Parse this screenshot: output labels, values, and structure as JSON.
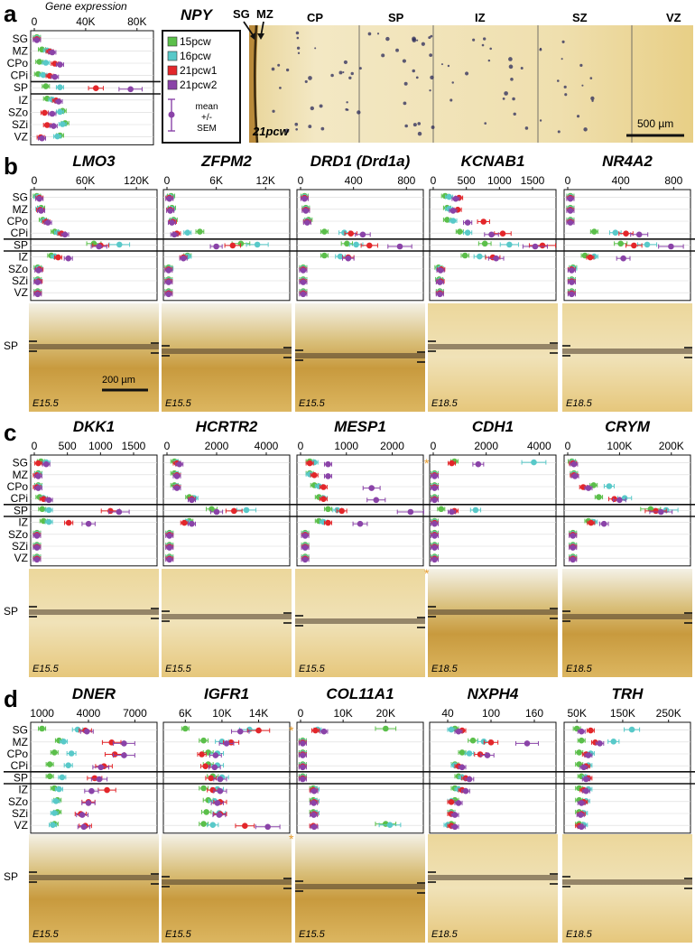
{
  "colors": {
    "s15": "#5bbf4a",
    "s16": "#58c9c9",
    "s21a": "#e3262a",
    "s21b": "#8a43a8",
    "tissue_light": "#f0e0a8",
    "tissue_dark": "#c99d45",
    "frame": "#111111"
  },
  "layers": [
    "SG",
    "MZ",
    "CPo",
    "CPi",
    "SP",
    "IZ",
    "SZo",
    "SZi",
    "VZ"
  ],
  "panel_a": {
    "letter": "a",
    "gene": "NPY",
    "axis_title": "Gene expression",
    "ticks": [
      "0",
      "40K",
      "80K"
    ],
    "tick_values": [
      0,
      40000,
      80000
    ],
    "x_max": 90000,
    "legend": {
      "items": [
        "15pcw",
        "16pcw",
        "21pcw1",
        "21pcw2"
      ],
      "sem_label": [
        "mean",
        "+/-",
        "SEM"
      ]
    },
    "zone_labels": [
      "SG",
      "MZ",
      "CP",
      "SP",
      "IZ",
      "SZ",
      "VZ"
    ],
    "age": "21pcw",
    "scale_bar": "500 µm"
  },
  "chart_data": {
    "type": "scatter",
    "series_names": [
      "15pcw",
      "16pcw",
      "21pcw1",
      "21pcw2"
    ],
    "panels": [
      {
        "id": "a",
        "gene": "NPY",
        "ticks": [
          "0",
          "40K",
          "80K"
        ],
        "tick_values": [
          0,
          40000,
          80000
        ],
        "x_max": 90000,
        "data": [
          [
            2000,
            2000,
            2000,
            2000
          ],
          [
            6000,
            10000,
            12000,
            14000
          ],
          [
            4000,
            9000,
            16000,
            20000
          ],
          [
            3000,
            7000,
            12000,
            16000
          ],
          [
            9000,
            20000,
            48000,
            75000
          ],
          [
            10000,
            14000,
            17000,
            19000
          ],
          [
            22000,
            20000,
            8000,
            14000
          ],
          [
            24000,
            22000,
            10000,
            15000
          ],
          [
            20000,
            18000,
            5000,
            6000
          ]
        ]
      },
      {
        "id": "b",
        "gene": "LMO3",
        "ticks": [
          "0",
          "60K",
          "120K"
        ],
        "tick_values": [
          0,
          60000,
          120000
        ],
        "x_max": 140000,
        "data": [
          [
            3000,
            4000,
            6000,
            6000
          ],
          [
            8000,
            6000,
            7000,
            8000
          ],
          [
            10000,
            12000,
            14000,
            16000
          ],
          [
            24000,
            28000,
            32000,
            36000
          ],
          [
            70000,
            100000,
            78000,
            76000
          ],
          [
            20000,
            24000,
            28000,
            40000
          ],
          [
            4000,
            5000,
            6000,
            5000
          ],
          [
            4000,
            4000,
            5000,
            4000
          ],
          [
            4000,
            4000,
            4000,
            4000
          ]
        ]
      },
      {
        "id": "b",
        "gene": "ZFPM2",
        "ticks": [
          "0",
          "6K",
          "12K"
        ],
        "tick_values": [
          0,
          6000,
          12000
        ],
        "x_max": 14500,
        "data": [
          [
            500,
            400,
            300,
            300
          ],
          [
            600,
            500,
            400,
            400
          ],
          [
            800,
            700,
            700,
            600
          ],
          [
            4000,
            2500,
            1200,
            900
          ],
          [
            9000,
            11000,
            8000,
            6000
          ],
          [
            2500,
            2500,
            2000,
            2000
          ],
          [
            200,
            300,
            200,
            200
          ],
          [
            200,
            200,
            200,
            200
          ],
          [
            200,
            200,
            200,
            200
          ]
        ]
      },
      {
        "id": "b",
        "gene": "DRD1 (Drd1a)",
        "ticks": [
          "0",
          "400",
          "800"
        ],
        "tick_values": [
          0,
          400,
          800
        ],
        "x_max": 900,
        "data": [
          [
            30,
            30,
            30,
            30
          ],
          [
            40,
            40,
            40,
            40
          ],
          [
            60,
            50,
            50,
            50
          ],
          [
            180,
            330,
            380,
            470
          ],
          [
            350,
            420,
            520,
            750
          ],
          [
            180,
            300,
            360,
            360
          ],
          [
            20,
            20,
            20,
            20
          ],
          [
            20,
            20,
            20,
            20
          ],
          [
            20,
            20,
            20,
            20
          ]
        ]
      },
      {
        "id": "b",
        "gene": "KCNAB1",
        "ticks": [
          "0",
          "500",
          "1000",
          "1500"
        ],
        "tick_values": [
          0,
          500,
          1000,
          1500
        ],
        "x_max": 1800,
        "data": [
          [
            180,
            240,
            390,
            340
          ],
          [
            210,
            240,
            370,
            300
          ],
          [
            210,
            300,
            760,
            520
          ],
          [
            400,
            520,
            1050,
            880
          ],
          [
            780,
            1150,
            1650,
            1540
          ],
          [
            480,
            700,
            900,
            950
          ],
          [
            80,
            100,
            120,
            110
          ],
          [
            90,
            100,
            110,
            100
          ],
          [
            100,
            100,
            100,
            100
          ]
        ]
      },
      {
        "id": "b",
        "gene": "NR4A2",
        "ticks": [
          "0",
          "400",
          "800"
        ],
        "tick_values": [
          0,
          400,
          800
        ],
        "x_max": 900,
        "data": [
          [
            20,
            20,
            20,
            20
          ],
          [
            20,
            20,
            20,
            20
          ],
          [
            20,
            20,
            20,
            20
          ],
          [
            200,
            360,
            440,
            540
          ],
          [
            400,
            600,
            500,
            780
          ],
          [
            130,
            200,
            170,
            420
          ],
          [
            40,
            40,
            30,
            30
          ],
          [
            30,
            30,
            30,
            30
          ],
          [
            30,
            30,
            30,
            30
          ]
        ]
      },
      {
        "id": "c",
        "gene": "DKK1",
        "ticks": [
          "0",
          "500",
          "1000",
          "1500"
        ],
        "tick_values": [
          0,
          500,
          1000,
          1500
        ],
        "x_max": 1800,
        "data": [
          [
            100,
            180,
            60,
            180
          ],
          [
            60,
            60,
            40,
            60
          ],
          [
            60,
            60,
            40,
            60
          ],
          [
            80,
            140,
            140,
            220
          ],
          [
            120,
            220,
            1150,
            1280
          ],
          [
            140,
            220,
            520,
            820
          ],
          [
            40,
            40,
            40,
            40
          ],
          [
            40,
            40,
            40,
            40
          ],
          [
            40,
            40,
            40,
            40
          ]
        ]
      },
      {
        "id": "c",
        "gene": "HCRTR2",
        "ticks": [
          "0",
          "2000",
          "4000"
        ],
        "tick_values": [
          0,
          2000,
          4000
        ],
        "x_max": 4800,
        "data": [
          [
            300,
            400,
            400,
            500
          ],
          [
            300,
            400,
            400,
            400
          ],
          [
            300,
            400,
            400,
            400
          ],
          [
            900,
            1100,
            1000,
            1000
          ],
          [
            1800,
            3200,
            2700,
            2000
          ],
          [
            900,
            800,
            700,
            1000
          ],
          [
            100,
            100,
            100,
            100
          ],
          [
            100,
            100,
            100,
            100
          ],
          [
            100,
            100,
            100,
            100
          ]
        ]
      },
      {
        "id": "c",
        "gene": "MESP1",
        "ticks": [
          "0",
          "1000",
          "2000"
        ],
        "tick_values": [
          0,
          1000,
          2000
        ],
        "x_max": 2600,
        "data": [
          [
            200,
            300,
            200,
            600
          ],
          [
            200,
            200,
            300,
            600
          ],
          [
            300,
            400,
            500,
            1550
          ],
          [
            400,
            500,
            500,
            1650
          ],
          [
            600,
            800,
            900,
            2400
          ],
          [
            400,
            500,
            600,
            1300
          ],
          [
            100,
            100,
            100,
            100
          ],
          [
            100,
            100,
            100,
            100
          ],
          [
            100,
            100,
            100,
            100
          ]
        ]
      },
      {
        "id": "c",
        "gene": "CDH1",
        "ticks": [
          "0",
          "2000",
          "4000"
        ],
        "tick_values": [
          0,
          2000,
          4000
        ],
        "x_max": 4500,
        "data": [
          [
            800,
            3800,
            700,
            1700
          ],
          [
            50,
            50,
            50,
            50
          ],
          [
            50,
            50,
            50,
            50
          ],
          [
            50,
            50,
            50,
            50
          ],
          [
            300,
            1600,
            800,
            700
          ],
          [
            50,
            50,
            50,
            50
          ],
          [
            50,
            50,
            50,
            50
          ],
          [
            50,
            50,
            50,
            50
          ],
          [
            50,
            50,
            50,
            50
          ]
        ]
      },
      {
        "id": "c",
        "gene": "CRYM",
        "ticks": [
          "0",
          "100K",
          "200K"
        ],
        "tick_values": [
          0,
          100000,
          200000
        ],
        "x_max": 230000,
        "data": [
          [
            8000,
            10000,
            10000,
            12000
          ],
          [
            12000,
            12000,
            12000,
            14000
          ],
          [
            50000,
            80000,
            30000,
            40000
          ],
          [
            60000,
            110000,
            90000,
            100000
          ],
          [
            160000,
            190000,
            170000,
            180000
          ],
          [
            40000,
            50000,
            45000,
            70000
          ],
          [
            10000,
            10000,
            10000,
            10000
          ],
          [
            10000,
            10000,
            10000,
            10000
          ],
          [
            10000,
            10000,
            10000,
            10000
          ]
        ]
      },
      {
        "id": "d",
        "gene": "DNER",
        "ticks": [
          "1000",
          "4000",
          "7000"
        ],
        "tick_values": [
          1000,
          4000,
          7000
        ],
        "x_min": 500,
        "x_max": 8200,
        "data": [
          [
            1000,
            3300,
            3800,
            3900
          ],
          [
            2100,
            2400,
            5500,
            6300
          ],
          [
            1800,
            2900,
            5700,
            6300
          ],
          [
            1500,
            2700,
            5000,
            4800
          ],
          [
            1500,
            2300,
            4400,
            4700
          ],
          [
            1800,
            2100,
            5200,
            4200
          ],
          [
            2000,
            1900,
            4000,
            4000
          ],
          [
            2000,
            1800,
            3500,
            3600
          ],
          [
            1800,
            1700,
            3800,
            3700
          ]
        ]
      },
      {
        "id": "d",
        "gene": "IGFR1",
        "ticks": [
          "6K",
          "10K",
          "14K"
        ],
        "tick_values": [
          6000,
          10000,
          14000
        ],
        "x_min": 4000,
        "x_max": 17000,
        "data": [
          [
            6000,
            13000,
            14000,
            12000
          ],
          [
            8000,
            10000,
            11000,
            10500
          ],
          [
            8500,
            9500,
            7800,
            9300
          ],
          [
            8500,
            9500,
            8200,
            9200
          ],
          [
            9000,
            10000,
            8800,
            9800
          ],
          [
            8000,
            9500,
            9000,
            9800
          ],
          [
            8500,
            9200,
            9800,
            9500
          ],
          [
            8300,
            9700,
            9800,
            9700
          ],
          [
            8000,
            9000,
            12500,
            15000
          ]
        ]
      },
      {
        "id": "d",
        "gene": "COL11A1",
        "ticks": [
          "0",
          "10K",
          "20K"
        ],
        "tick_values": [
          0,
          10000,
          20000
        ],
        "x_max": 28000,
        "data": [
          [
            20000,
            4000,
            3500,
            5500
          ],
          [
            500,
            500,
            500,
            500
          ],
          [
            500,
            500,
            500,
            500
          ],
          [
            500,
            500,
            500,
            500
          ],
          [
            500,
            500,
            500,
            500
          ],
          [
            3000,
            3500,
            3000,
            3200
          ],
          [
            3000,
            3500,
            3200,
            3100
          ],
          [
            3000,
            3500,
            3200,
            3100
          ],
          [
            20000,
            21000,
            3000,
            3200
          ]
        ]
      },
      {
        "id": "d",
        "gene": "NXPH4",
        "ticks": [
          "40",
          "100",
          "160"
        ],
        "tick_values": [
          40,
          100,
          160
        ],
        "x_min": 20,
        "x_max": 185,
        "data": [
          [
            50,
            45,
            60,
            55
          ],
          [
            75,
            90,
            100,
            150
          ],
          [
            60,
            70,
            85,
            95
          ],
          [
            50,
            50,
            55,
            60
          ],
          [
            55,
            60,
            65,
            70
          ],
          [
            50,
            55,
            60,
            65
          ],
          [
            50,
            45,
            45,
            55
          ],
          [
            45,
            45,
            45,
            50
          ],
          [
            45,
            40,
            45,
            50
          ]
        ]
      },
      {
        "id": "d",
        "gene": "TRH",
        "ticks": [
          "50K",
          "150K",
          "250K"
        ],
        "tick_values": [
          50000,
          150000,
          250000
        ],
        "x_min": 30000,
        "x_max": 290000,
        "data": [
          [
            50000,
            170000,
            80000,
            60000
          ],
          [
            60000,
            130000,
            90000,
            100000
          ],
          [
            55000,
            80000,
            70000,
            75000
          ],
          [
            55000,
            75000,
            70000,
            65000
          ],
          [
            60000,
            70000,
            75000,
            70000
          ],
          [
            55000,
            75000,
            65000,
            70000
          ],
          [
            55000,
            70000,
            65000,
            60000
          ],
          [
            55000,
            65000,
            60000,
            58000
          ],
          [
            55000,
            65000,
            55000,
            60000
          ]
        ]
      }
    ]
  },
  "panel_b": {
    "letter": "b",
    "sp_label": "SP",
    "scale_bar": "200 µm",
    "ages": [
      "E15.5",
      "E15.5",
      "E15.5",
      "E18.5",
      "E18.5"
    ]
  },
  "panel_c": {
    "letter": "c",
    "sp_label": "SP",
    "ages": [
      "E15.5",
      "E15.5",
      "E15.5",
      "E18.5",
      "E18.5"
    ],
    "asterisk": "*"
  },
  "panel_d": {
    "letter": "d",
    "sp_label": "SP",
    "ages": [
      "E15.5",
      "E15.5",
      "E15.5",
      "E18.5",
      "E18.5"
    ],
    "asterisk": "*"
  }
}
